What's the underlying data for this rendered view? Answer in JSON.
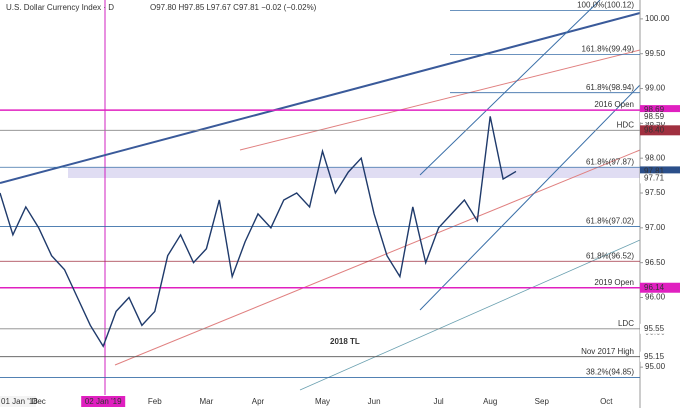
{
  "chart_data": {
    "type": "line",
    "title": "U.S. Dollar Currency Index · D",
    "subtitle": "O97.80 H97.85 L97.67 C97.81 −0.02 (−0.02%)",
    "categories": [
      "01 Jan '18",
      null,
      null,
      "Dec",
      null,
      null,
      null,
      null,
      "02 Jan '19",
      null,
      null,
      null,
      "Feb",
      null,
      null,
      null,
      "Mar",
      null,
      null,
      null,
      "Apr",
      null,
      null,
      null,
      null,
      "May",
      null,
      null,
      null,
      "Jun",
      null,
      null,
      null,
      null,
      "Jul",
      null,
      null,
      null,
      "Aug",
      null,
      null,
      null,
      "Sep",
      null,
      null,
      null,
      null,
      "Oct"
    ],
    "series": [
      {
        "name": "U.S. Dollar Currency Index",
        "color": "#1f3a6b",
        "values": [
          97.5,
          96.9,
          97.3,
          97.0,
          96.6,
          96.4,
          96.0,
          95.6,
          95.3,
          95.8,
          96.0,
          95.6,
          95.8,
          96.6,
          96.9,
          96.5,
          96.7,
          97.4,
          96.3,
          96.8,
          97.2,
          97.0,
          97.4,
          97.5,
          97.3,
          98.1,
          97.5,
          97.8,
          98.0,
          97.2,
          96.6,
          96.3,
          97.3,
          96.5,
          97.0,
          97.2,
          97.4,
          97.1,
          98.6,
          97.7,
          97.81,
          null,
          null,
          null,
          null,
          null,
          null,
          null
        ]
      }
    ],
    "ylim": [
      94.6,
      100.07
    ],
    "yticks": [
      {
        "value": 95,
        "label": "95.00"
      },
      {
        "value": 95.5,
        "label": "95.50"
      },
      {
        "value": 96,
        "label": "96.00"
      },
      {
        "value": 96.5,
        "label": "96.50"
      },
      {
        "value": 97,
        "label": "97.00"
      },
      {
        "value": 97.5,
        "label": "97.50"
      },
      {
        "value": 98,
        "label": "98.00"
      },
      {
        "value": 98.5,
        "label": "98.50"
      },
      {
        "value": 99,
        "label": "99.00"
      },
      {
        "value": 99.5,
        "label": "99.50"
      },
      {
        "value": 100,
        "label": "100.00"
      }
    ],
    "levels": [
      {
        "value": 100.12,
        "label": "100.0%(100.12)",
        "color": "#3a6fa8"
      },
      {
        "value": 99.49,
        "label": "161.8%(99.49)",
        "color": "#3a6fa8"
      },
      {
        "value": 98.94,
        "label": "61.8%(98.94)",
        "color": "#3a6fa8"
      },
      {
        "value": 98.69,
        "label": "2016 Open",
        "color": "#e020c0"
      },
      {
        "value": 98.4,
        "label": "HDC",
        "color": "#888888"
      },
      {
        "value": 97.87,
        "label": "61.8%(97.87)",
        "color": "#3a6fa8"
      },
      {
        "value": 97.02,
        "label": "61.8%(97.02)",
        "color": "#3a6fa8"
      },
      {
        "value": 96.52,
        "label": "61.8%(96.52)",
        "color": "#a03040"
      },
      {
        "value": 96.14,
        "label": "2019 Open",
        "color": "#e020c0"
      },
      {
        "value": 95.55,
        "label": "LDC",
        "color": "#888888"
      },
      {
        "value": 95.15,
        "label": "Nov 2017 High",
        "color": "#555555"
      },
      {
        "value": 94.85,
        "label": "38.2%(94.85)",
        "color": "#3a6fa8"
      }
    ],
    "price_tags": [
      {
        "value": 98.69,
        "label": "98.69",
        "color": "#e020c0"
      },
      {
        "value": 98.59,
        "label": "98.59",
        "color": "#ffffff"
      },
      {
        "value": 98.4,
        "label": "98.40",
        "color": "#a03040"
      },
      {
        "value": 97.81,
        "label": "97.81",
        "color": "#2b4f8a"
      },
      {
        "value": 97.71,
        "label": "97.71",
        "color": "#ffffff"
      },
      {
        "value": 96.14,
        "label": "96.14",
        "color": "#e020c0"
      },
      {
        "value": 95.55,
        "label": "95.55",
        "color": "#ffffff"
      },
      {
        "value": 95.15,
        "label": "95.15",
        "color": "#ffffff"
      }
    ],
    "annotations": [
      "2018 TL"
    ]
  }
}
